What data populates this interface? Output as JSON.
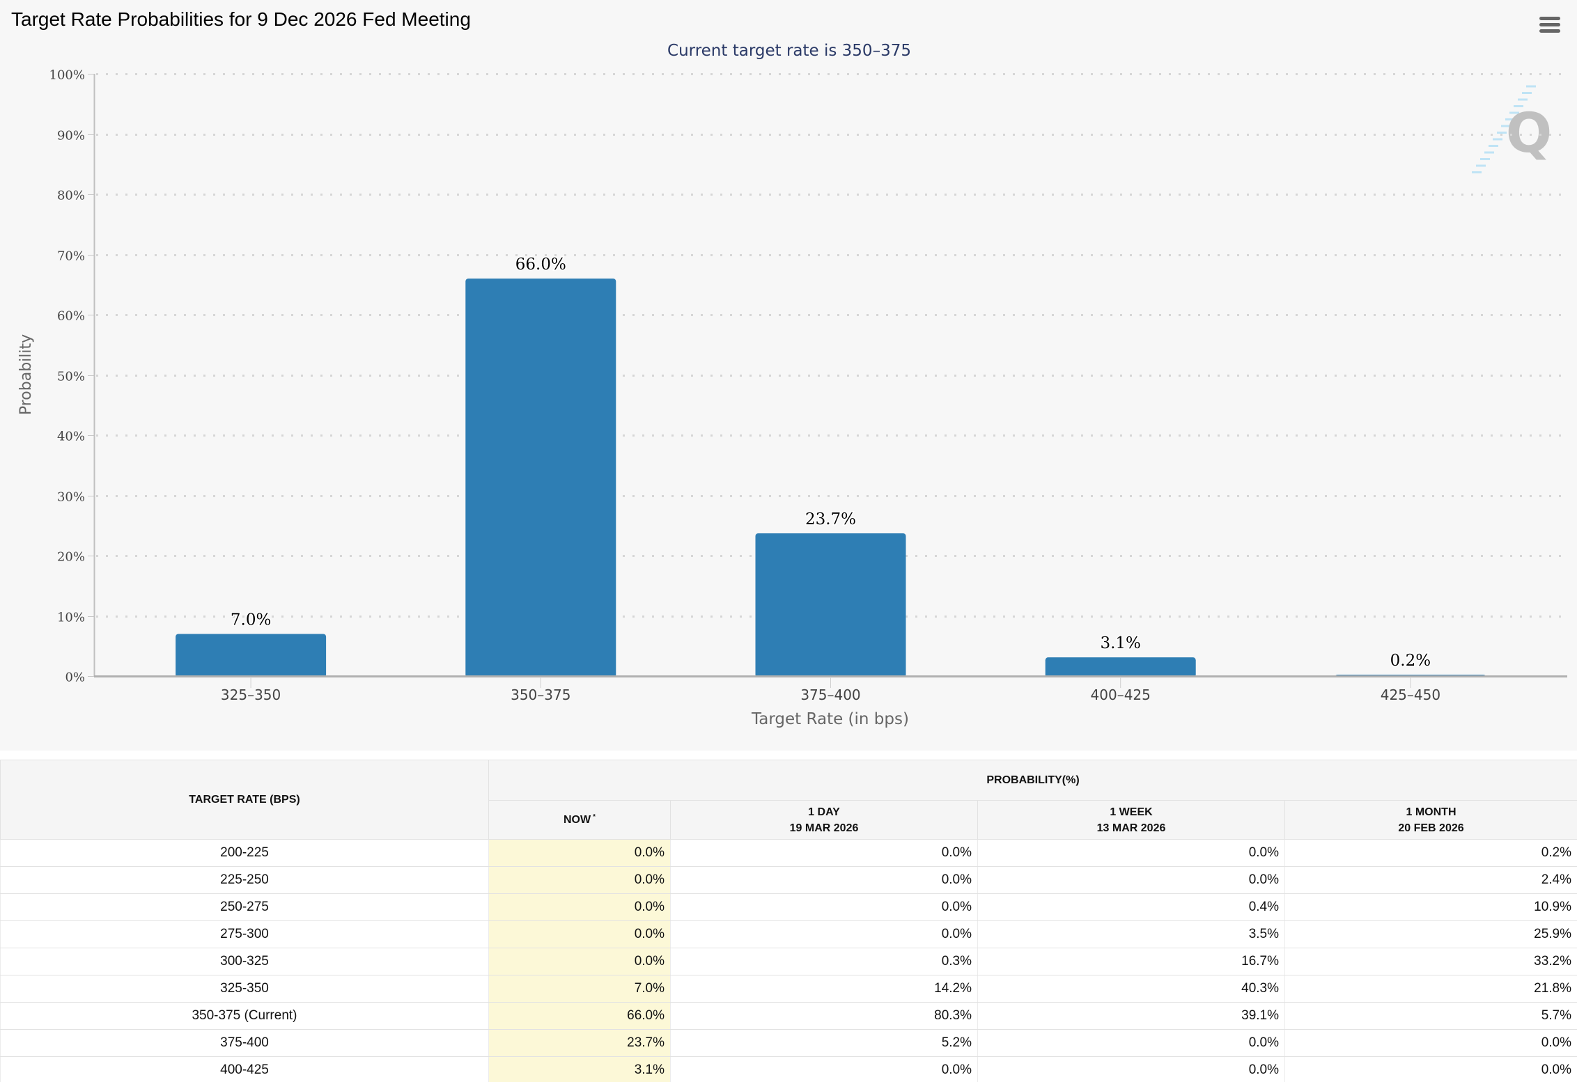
{
  "page": {
    "title": "Target Rate Probabilities for 9 Dec 2026 Fed Meeting",
    "menu_icon": "hamburger-menu-icon",
    "watermark_letter": "Q"
  },
  "colors": {
    "bar": "#2e7eb4",
    "subtitle": "#2b3a67",
    "now_column": "#fcf8d7",
    "panel_bg": "#f7f7f7"
  },
  "chart_data": {
    "type": "bar",
    "title": "Target Rate Probabilities for 9 Dec 2026 Fed Meeting",
    "subtitle": "Current target rate is 350–375",
    "categories": [
      "325–350",
      "350–375",
      "375–400",
      "400–425",
      "425–450"
    ],
    "values": [
      7.0,
      66.0,
      23.7,
      3.1,
      0.2
    ],
    "data_labels": [
      "7.0%",
      "66.0%",
      "23.7%",
      "3.1%",
      "0.2%"
    ],
    "xlabel": "Target Rate (in bps)",
    "ylabel": "Probability",
    "ylim": [
      0,
      100
    ],
    "yticks": [
      0,
      10,
      20,
      30,
      40,
      50,
      60,
      70,
      80,
      90,
      100
    ],
    "ytick_labels": [
      "0%",
      "10%",
      "20%",
      "30%",
      "40%",
      "50%",
      "60%",
      "70%",
      "80%",
      "90%",
      "100%"
    ],
    "grid": true,
    "legend": "none"
  },
  "table": {
    "header_rate": "TARGET RATE (BPS)",
    "header_prob": "PROBABILITY(%)",
    "columns": [
      {
        "line1": "NOW",
        "line2": "",
        "marker": "*"
      },
      {
        "line1": "1 DAY",
        "line2": "19 MAR 2026",
        "marker": ""
      },
      {
        "line1": "1 WEEK",
        "line2": "13 MAR 2026",
        "marker": ""
      },
      {
        "line1": "1 MONTH",
        "line2": "20 FEB 2026",
        "marker": ""
      }
    ],
    "rows": [
      {
        "rate": "200-225",
        "values": [
          "0.0%",
          "0.0%",
          "0.0%",
          "0.2%"
        ]
      },
      {
        "rate": "225-250",
        "values": [
          "0.0%",
          "0.0%",
          "0.0%",
          "2.4%"
        ]
      },
      {
        "rate": "250-275",
        "values": [
          "0.0%",
          "0.0%",
          "0.4%",
          "10.9%"
        ]
      },
      {
        "rate": "275-300",
        "values": [
          "0.0%",
          "0.0%",
          "3.5%",
          "25.9%"
        ]
      },
      {
        "rate": "300-325",
        "values": [
          "0.0%",
          "0.3%",
          "16.7%",
          "33.2%"
        ]
      },
      {
        "rate": "325-350",
        "values": [
          "7.0%",
          "14.2%",
          "40.3%",
          "21.8%"
        ]
      },
      {
        "rate": "350-375 (Current)",
        "values": [
          "66.0%",
          "80.3%",
          "39.1%",
          "5.7%"
        ]
      },
      {
        "rate": "375-400",
        "values": [
          "23.7%",
          "5.2%",
          "0.0%",
          "0.0%"
        ]
      },
      {
        "rate": "400-425",
        "values": [
          "3.1%",
          "0.0%",
          "0.0%",
          "0.0%"
        ]
      }
    ]
  }
}
